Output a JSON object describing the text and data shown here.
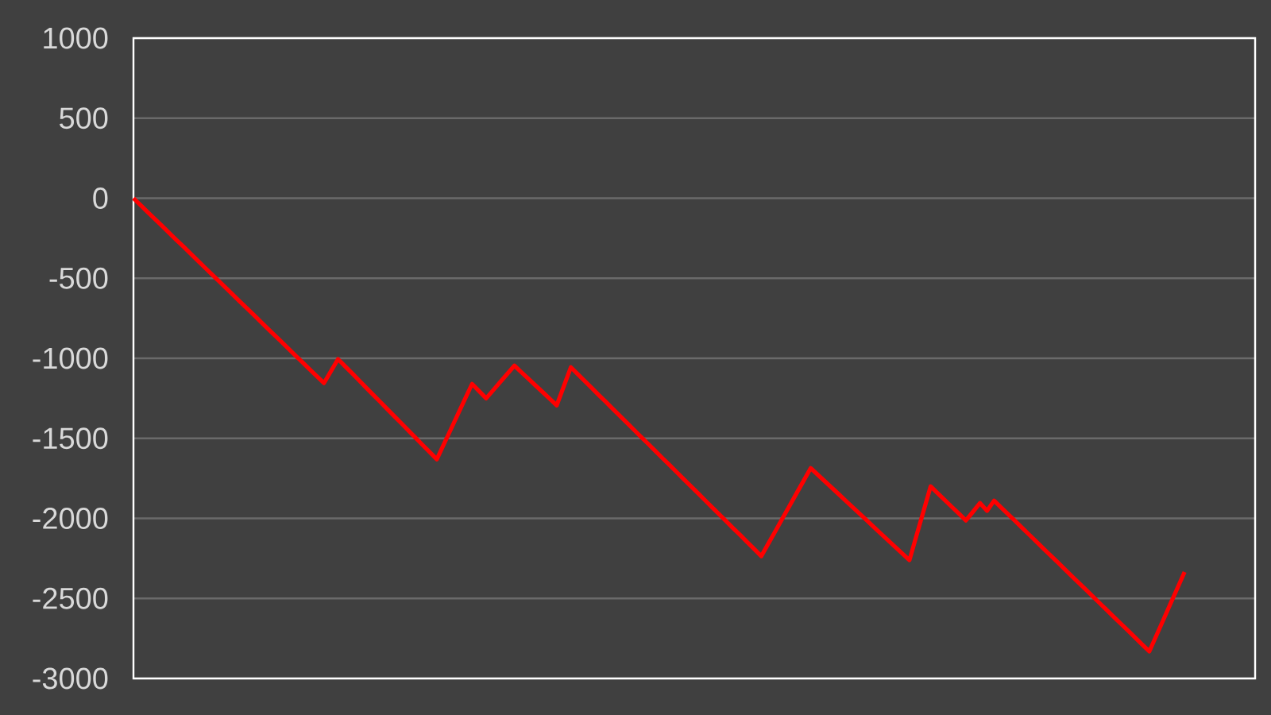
{
  "chart_data": {
    "type": "line",
    "color": "#ff0000",
    "ylim": [
      -3000,
      1000
    ],
    "yticks": [
      -3000,
      -2500,
      -2000,
      -1500,
      -1000,
      -500,
      0,
      500,
      1000
    ],
    "grid": "y",
    "tick_labels": "y",
    "categories": [
      null,
      null,
      null,
      null,
      null,
      null,
      null,
      null,
      null,
      null,
      null,
      null,
      null,
      null,
      null,
      null,
      null,
      null,
      null,
      null,
      null,
      null,
      null,
      null,
      null,
      null,
      null,
      null,
      null,
      null,
      null,
      null,
      null,
      null,
      null,
      null,
      null,
      null,
      null,
      null,
      null,
      null,
      null,
      null,
      null,
      null,
      null,
      null,
      null,
      null,
      null,
      null,
      null,
      null,
      null,
      null,
      null,
      null,
      null,
      null,
      null,
      null,
      null,
      null,
      null,
      null,
      null,
      null,
      null,
      null,
      null,
      null,
      null,
      null,
      null,
      null,
      null,
      null,
      null,
      null,
      null,
      null,
      null,
      null,
      null,
      null,
      null,
      null,
      null,
      null,
      null,
      null,
      null,
      null,
      null,
      null,
      null,
      null,
      null,
      null,
      null,
      null,
      null,
      null,
      null,
      null,
      null,
      null,
      null,
      null,
      null,
      null,
      null,
      null,
      null,
      null,
      null,
      null,
      null,
      null,
      null,
      null,
      null,
      null,
      null,
      null,
      null,
      null,
      null,
      null,
      null,
      null,
      null,
      null,
      null,
      null,
      null,
      null,
      null,
      null,
      null,
      null,
      null,
      null,
      null,
      null,
      null,
      null,
      null,
      null,
      null,
      null,
      null,
      null,
      null,
      null,
      null,
      null,
      null,
      null
    ],
    "values": [
      0,
      -43,
      -86,
      -128,
      -171,
      -214,
      -257,
      -299,
      -342,
      -385,
      -428,
      -471,
      -513,
      -556,
      -599,
      -642,
      -684,
      -727,
      -770,
      -813,
      -856,
      -898,
      -941,
      -984,
      -1027,
      -1070,
      -1112,
      -1155,
      -1080,
      -1005,
      -1050,
      -1094,
      -1139,
      -1184,
      -1229,
      -1273,
      -1318,
      -1363,
      -1407,
      -1452,
      -1497,
      -1542,
      -1586,
      -1631,
      -1537,
      -1443,
      -1348,
      -1254,
      -1160,
      -1205,
      -1250,
      -1199,
      -1148,
      -1097,
      -1046,
      -1087,
      -1129,
      -1170,
      -1211,
      -1253,
      -1294,
      -1175,
      -1056,
      -1100,
      -1143,
      -1187,
      -1231,
      -1274,
      -1318,
      -1362,
      -1405,
      -1449,
      -1493,
      -1536,
      -1580,
      -1624,
      -1667,
      -1711,
      -1755,
      -1798,
      -1842,
      -1886,
      -1930,
      -1973,
      -2017,
      -2061,
      -2104,
      -2148,
      -2192,
      -2236,
      -2157,
      -2079,
      -2000,
      -1922,
      -1843,
      -1765,
      -1686,
      -1727,
      -1768,
      -1809,
      -1850,
      -1891,
      -1932,
      -1973,
      -2014,
      -2056,
      -2097,
      -2138,
      -2179,
      -2220,
      -2261,
      -2107,
      -1954,
      -1800,
      -1843,
      -1885,
      -1928,
      -1970,
      -2013,
      -1959,
      -1904,
      -1953,
      -1889,
      -1932,
      -1975,
      -2017,
      -2060,
      -2103,
      -2146,
      -2189,
      -2231,
      -2274,
      -2317,
      -2360,
      -2403,
      -2445,
      -2488,
      -2531,
      -2574,
      -2617,
      -2659,
      -2702,
      -2745,
      -2788,
      -2831,
      -2732,
      -2633,
      -2533,
      -2434,
      -2335,
      null,
      null,
      null,
      null,
      null,
      null,
      null,
      null,
      null,
      null
    ]
  }
}
